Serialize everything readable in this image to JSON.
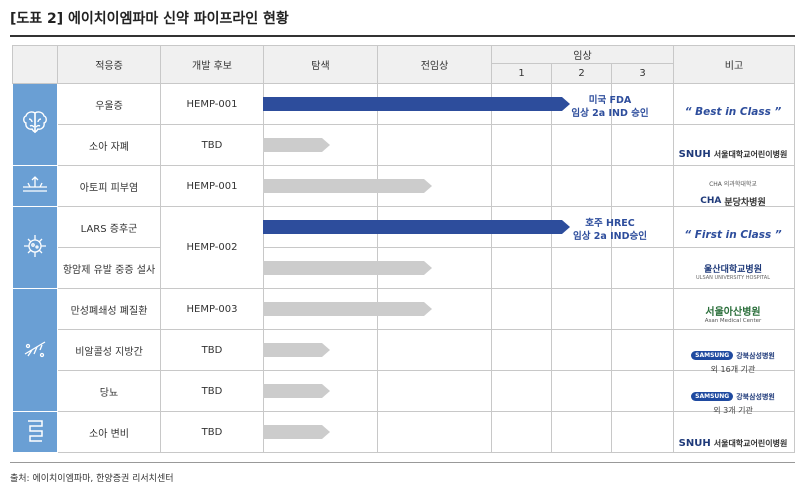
{
  "title": "[도표 2] 에이치이엠파마 신약 파이프라인 현황",
  "headers": {
    "indication": "적응증",
    "candidate": "개발 후보",
    "discovery": "탐색",
    "preclinical": "전임상",
    "clinical": "임상",
    "phase1": "1",
    "phase2": "2",
    "phase3": "3",
    "note": "비고"
  },
  "rows": [
    {
      "indication": "우울증",
      "candidate": "HEMP-001",
      "bar_progress": 0.6,
      "bar_color": "blue",
      "label": [
        "미국 FDA",
        "임상 2a IND 승인"
      ],
      "note_type": "text",
      "note": "“ Best in Class ”"
    },
    {
      "indication": "소아 자폐",
      "candidate": "TBD",
      "bar_progress": 0.13,
      "bar_color": "gray",
      "note_type": "logo",
      "note": "SNUH",
      "note_sub": "서울대학교어린이병원"
    },
    {
      "indication": "아토피 피부염",
      "candidate": "HEMP-001",
      "bar_progress": 0.33,
      "bar_color": "gray",
      "note_type": "logo",
      "note": "CHA",
      "note_sub": "분당차병원",
      "note_top": "CHA 의과학대학교"
    },
    {
      "indication": "LARS 증후군",
      "candidate": "HEMP-002",
      "bar_progress": 0.6,
      "bar_color": "blue",
      "label": [
        "호주 HREC",
        "임상 2a IND승인"
      ],
      "note_type": "text",
      "note": "“ First in Class ”"
    },
    {
      "indication": "항암제 유발 중증 설사",
      "candidate": "",
      "bar_progress": 0.33,
      "bar_color": "gray",
      "note_type": "logo",
      "note": "울산대학교병원",
      "note_sub": "ULSAN UNIVERSITY HOSPITAL"
    },
    {
      "indication": "만성폐쇄성 폐질환",
      "candidate": "HEMP-003",
      "bar_progress": 0.33,
      "bar_color": "gray",
      "note_type": "logo",
      "note": "서울아산병원",
      "note_sub": "Asan Medical Center"
    },
    {
      "indication": "비알콜성 지방간",
      "candidate": "TBD",
      "bar_progress": 0.13,
      "bar_color": "gray",
      "note_type": "samsung",
      "note": "강북삼성병원",
      "note_sub": "외 16개 기관",
      "note_logo": "SAMSUNG"
    },
    {
      "indication": "당뇨",
      "candidate": "TBD",
      "bar_progress": 0.13,
      "bar_color": "gray",
      "note_type": "samsung",
      "note": "강북삼성병원",
      "note_sub": "외 3개 기관",
      "note_logo": "SAMSUNG"
    },
    {
      "indication": "소아 변비",
      "candidate": "TBD",
      "bar_progress": 0.13,
      "bar_color": "gray",
      "note_type": "logo",
      "note": "SNUH",
      "note_sub": "서울대학교어린이병원"
    }
  ],
  "icons": [
    "brain-icon",
    "skin-icon",
    "microbe-icon",
    "liver-icon",
    "intestine-icon"
  ],
  "source": "출처: 에이치이엠파마, 한양증권 리서치센터",
  "colors": {
    "blue": "#2d4d9c",
    "gray": "#cccccc",
    "icon_bg": "#6a9fd4"
  }
}
